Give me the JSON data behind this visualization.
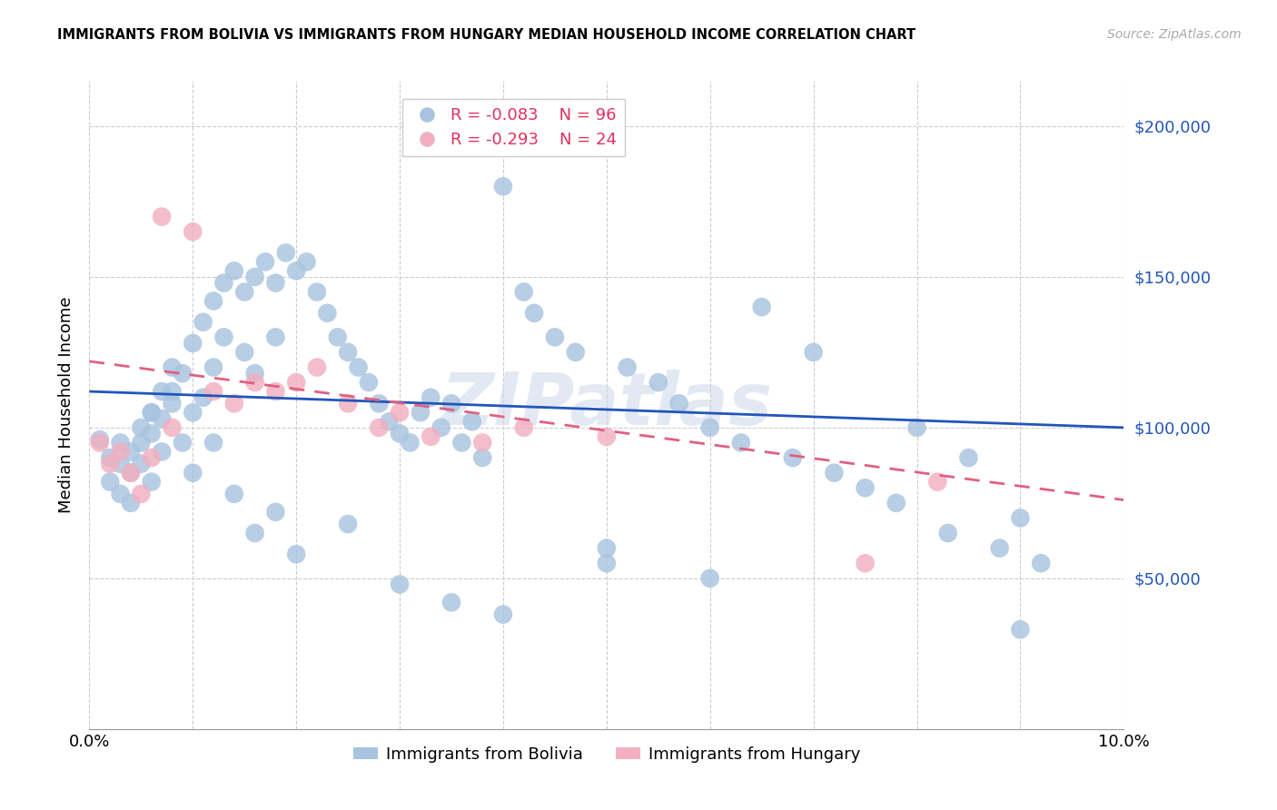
{
  "title": "IMMIGRANTS FROM BOLIVIA VS IMMIGRANTS FROM HUNGARY MEDIAN HOUSEHOLD INCOME CORRELATION CHART",
  "source": "Source: ZipAtlas.com",
  "ylabel": "Median Household Income",
  "xlim": [
    0.0,
    0.1
  ],
  "ylim": [
    0,
    215000
  ],
  "bolivia_color": "#a8c4e0",
  "hungary_color": "#f2afc0",
  "bolivia_line_color": "#2255bb",
  "hungary_line_color": "#e06080",
  "legend_R_bolivia": "-0.083",
  "legend_N_bolivia": "96",
  "legend_R_hungary": "-0.293",
  "legend_N_hungary": "24",
  "bolivia_intercept": 112000,
  "bolivia_slope": -120000,
  "hungary_intercept": 122000,
  "hungary_slope": -460000,
  "watermark": "ZIPatlas",
  "bolivia_x": [
    0.001,
    0.002,
    0.002,
    0.003,
    0.003,
    0.003,
    0.004,
    0.004,
    0.005,
    0.005,
    0.005,
    0.006,
    0.006,
    0.006,
    0.007,
    0.007,
    0.007,
    0.008,
    0.008,
    0.009,
    0.009,
    0.01,
    0.01,
    0.011,
    0.011,
    0.012,
    0.012,
    0.013,
    0.013,
    0.014,
    0.015,
    0.015,
    0.016,
    0.016,
    0.017,
    0.018,
    0.018,
    0.019,
    0.02,
    0.021,
    0.022,
    0.023,
    0.024,
    0.025,
    0.026,
    0.027,
    0.028,
    0.029,
    0.03,
    0.031,
    0.032,
    0.033,
    0.034,
    0.035,
    0.036,
    0.037,
    0.038,
    0.04,
    0.042,
    0.043,
    0.045,
    0.047,
    0.05,
    0.052,
    0.055,
    0.057,
    0.06,
    0.063,
    0.065,
    0.068,
    0.07,
    0.072,
    0.075,
    0.078,
    0.08,
    0.083,
    0.085,
    0.088,
    0.09,
    0.092,
    0.004,
    0.006,
    0.008,
    0.01,
    0.012,
    0.014,
    0.016,
    0.018,
    0.02,
    0.025,
    0.03,
    0.035,
    0.04,
    0.05,
    0.06,
    0.09
  ],
  "bolivia_y": [
    96000,
    90000,
    82000,
    88000,
    95000,
    78000,
    92000,
    85000,
    100000,
    95000,
    88000,
    105000,
    98000,
    82000,
    112000,
    103000,
    92000,
    120000,
    108000,
    118000,
    95000,
    128000,
    105000,
    135000,
    110000,
    142000,
    120000,
    148000,
    130000,
    152000,
    145000,
    125000,
    150000,
    118000,
    155000,
    148000,
    130000,
    158000,
    152000,
    155000,
    145000,
    138000,
    130000,
    125000,
    120000,
    115000,
    108000,
    102000,
    98000,
    95000,
    105000,
    110000,
    100000,
    108000,
    95000,
    102000,
    90000,
    180000,
    145000,
    138000,
    130000,
    125000,
    55000,
    120000,
    115000,
    108000,
    100000,
    95000,
    140000,
    90000,
    125000,
    85000,
    80000,
    75000,
    100000,
    65000,
    90000,
    60000,
    70000,
    55000,
    75000,
    105000,
    112000,
    85000,
    95000,
    78000,
    65000,
    72000,
    58000,
    68000,
    48000,
    42000,
    38000,
    60000,
    50000,
    33000
  ],
  "hungary_x": [
    0.001,
    0.002,
    0.003,
    0.004,
    0.005,
    0.006,
    0.007,
    0.008,
    0.01,
    0.012,
    0.014,
    0.016,
    0.018,
    0.02,
    0.022,
    0.025,
    0.028,
    0.03,
    0.033,
    0.038,
    0.042,
    0.05,
    0.075,
    0.082
  ],
  "hungary_y": [
    95000,
    88000,
    92000,
    85000,
    78000,
    90000,
    170000,
    100000,
    165000,
    112000,
    108000,
    115000,
    112000,
    115000,
    120000,
    108000,
    100000,
    105000,
    97000,
    95000,
    100000,
    97000,
    55000,
    82000
  ]
}
